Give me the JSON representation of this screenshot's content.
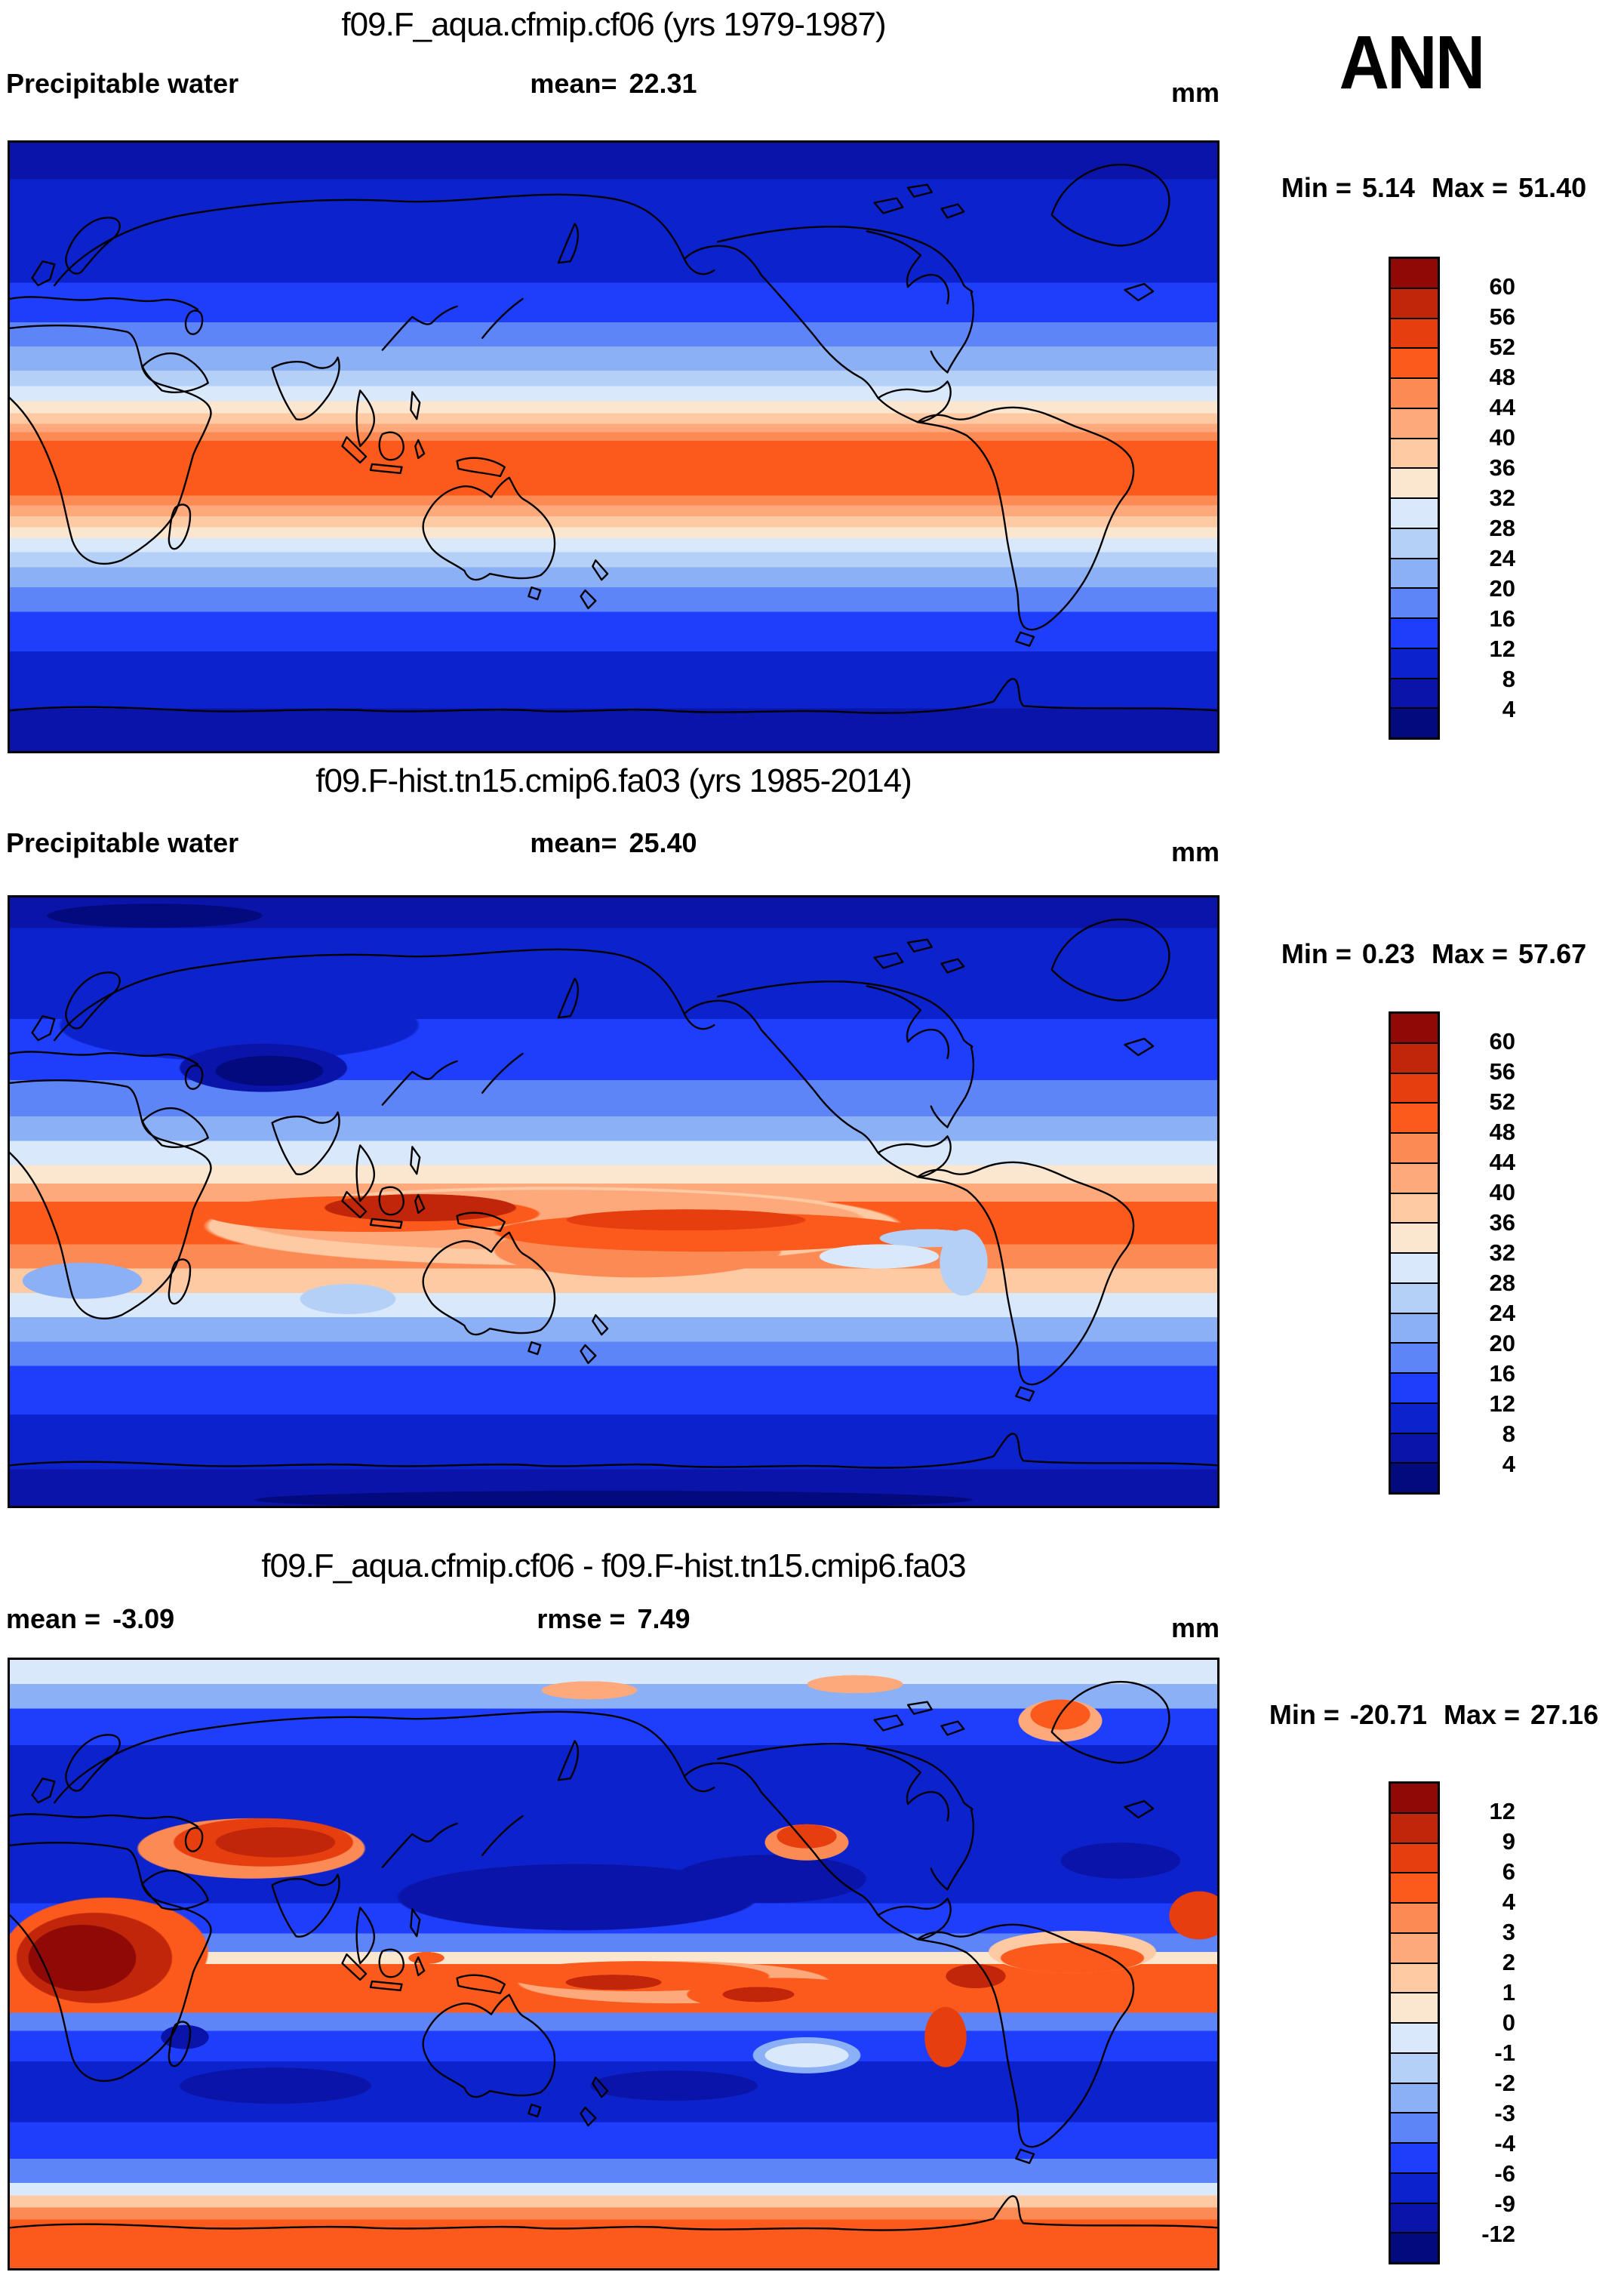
{
  "season_label": "ANN",
  "panels": [
    {
      "title": "f09.F_aqua.cfmip.cf06 (yrs 1979-1987)",
      "left_label": "Precipitable water",
      "center_label": "mean=",
      "center_value": "22.31",
      "units": "mm",
      "min_label": "Min =",
      "min_value": "5.14",
      "max_label": "Max =",
      "max_value": "51.40",
      "colorbar": {
        "tick_labels": [
          "60",
          "56",
          "52",
          "48",
          "44",
          "40",
          "36",
          "32",
          "28",
          "24",
          "20",
          "16",
          "12",
          "8",
          "4"
        ],
        "colors": [
          "#8f0a06",
          "#c1260b",
          "#e63e0e",
          "#fb5a1c",
          "#fb8a55",
          "#fda97c",
          "#fecaa4",
          "#fbe6cf",
          "#d9e8fb",
          "#b4d0f7",
          "#8cb0f5",
          "#5e85f8",
          "#1e3efb",
          "#0c22cc",
          "#0a14a8",
          "#020a7e"
        ]
      }
    },
    {
      "title": "f09.F-hist.tn15.cmip6.fa03 (yrs 1985-2014)",
      "left_label": "Precipitable water",
      "center_label": "mean=",
      "center_value": "25.40",
      "units": "mm",
      "min_label": "Min =",
      "min_value": "0.23",
      "max_label": "Max =",
      "max_value": "57.67",
      "colorbar": {
        "tick_labels": [
          "60",
          "56",
          "52",
          "48",
          "44",
          "40",
          "36",
          "32",
          "28",
          "24",
          "20",
          "16",
          "12",
          "8",
          "4"
        ],
        "colors": [
          "#8f0a06",
          "#c1260b",
          "#e63e0e",
          "#fb5a1c",
          "#fb8a55",
          "#fda97c",
          "#fecaa4",
          "#fbe6cf",
          "#d9e8fb",
          "#b4d0f7",
          "#8cb0f5",
          "#5e85f8",
          "#1e3efb",
          "#0c22cc",
          "#0a14a8",
          "#020a7e"
        ]
      }
    },
    {
      "title": "f09.F_aqua.cfmip.cf06 - f09.F-hist.tn15.cmip6.fa03",
      "left_label": "mean =",
      "left_value": "-3.09",
      "center_label": "rmse =",
      "center_value": "7.49",
      "units": "mm",
      "min_label": "Min =",
      "min_value": "-20.71",
      "max_label": "Max =",
      "max_value": "27.16",
      "colorbar": {
        "tick_labels": [
          "12",
          "9",
          "6",
          "4",
          "3",
          "2",
          "1",
          "0",
          "-1",
          "-2",
          "-3",
          "-4",
          "-6",
          "-9",
          "-12"
        ],
        "colors": [
          "#8f0a06",
          "#c1260b",
          "#e63e0e",
          "#fb5a1c",
          "#fb8a55",
          "#fda97c",
          "#fecaa4",
          "#fbe6cf",
          "#d9e8fb",
          "#b4d0f7",
          "#8cb0f5",
          "#5e85f8",
          "#1e3efb",
          "#0c22cc",
          "#0a14a8",
          "#020a7e"
        ]
      }
    }
  ],
  "chart_data": {
    "type": "heatmap",
    "subtype": "global-latlon-filled-contour-maps",
    "season": "ANN",
    "variable": "Precipitable water",
    "units": "mm",
    "panels": [
      {
        "title": "f09.F_aqua.cfmip.cf06 (yrs 1979-1987)",
        "mean": 22.31,
        "min": 5.14,
        "max": 51.4,
        "contour_levels": [
          4,
          8,
          12,
          16,
          20,
          24,
          28,
          32,
          36,
          40,
          44,
          48,
          52,
          56,
          60
        ],
        "pattern": "zonally-uniform aquaplanet bands: dark blue poles, orange-red band (48-52 mm) centered slightly north of equator"
      },
      {
        "title": "f09.F-hist.tn15.cmip6.fa03 (yrs 1985-2014)",
        "mean": 25.4,
        "min": 0.23,
        "max": 57.67,
        "contour_levels": [
          4,
          8,
          12,
          16,
          20,
          24,
          28,
          32,
          36,
          40,
          44,
          48,
          52,
          56,
          60
        ],
        "pattern": "realistic climatology: dark-red ITCZ/warm pool (56-60 mm), darkest blue minimum over Tibetan Plateau and poles"
      },
      {
        "title": "f09.F_aqua.cfmip.cf06 - f09.F-hist.tn15.cmip6.fa03",
        "mean": -3.09,
        "rmse": 7.49,
        "min": -20.71,
        "max": 27.16,
        "contour_levels": [
          -12,
          -9,
          -6,
          -4,
          -3,
          -2,
          -1,
          0,
          1,
          2,
          3,
          4,
          6,
          9,
          12
        ],
        "pattern": "difference map: strong positive (red) over Africa, central Asia, tropical east Pacific band, Andes, Sahara, Greenland and Antarctica; strong negative (blue) over west Pacific warm pool, mid-latitude oceans"
      }
    ],
    "legend_position": "right",
    "palette_order_top_to_bottom": [
      "#8f0a06",
      "#c1260b",
      "#e63e0e",
      "#fb5a1c",
      "#fb8a55",
      "#fda97c",
      "#fecaa4",
      "#fbe6cf",
      "#d9e8fb",
      "#b4d0f7",
      "#8cb0f5",
      "#5e85f8",
      "#1e3efb",
      "#0c22cc",
      "#0a14a8",
      "#020a7e"
    ]
  }
}
